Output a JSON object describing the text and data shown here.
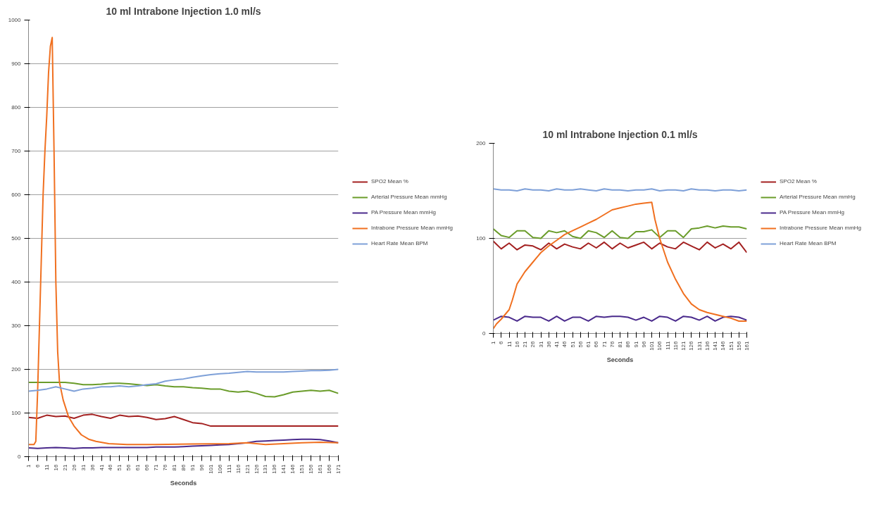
{
  "chart_data": [
    {
      "type": "line",
      "title": "10 ml Intrabone Injection 1.0 ml/s",
      "xlabel": "Seconds",
      "xlim": [
        1,
        171
      ],
      "xticks": [
        1,
        6,
        11,
        16,
        21,
        26,
        31,
        36,
        41,
        46,
        51,
        56,
        61,
        66,
        71,
        76,
        81,
        86,
        91,
        96,
        101,
        106,
        111,
        116,
        121,
        126,
        131,
        136,
        141,
        146,
        151,
        156,
        161,
        166,
        171
      ],
      "ylim": [
        0,
        1000
      ],
      "yticks": [
        0,
        100,
        200,
        300,
        400,
        500,
        600,
        700,
        800,
        900,
        1000
      ],
      "grid": "y",
      "legend": "right",
      "x": [
        1,
        6,
        11,
        16,
        21,
        26,
        31,
        36,
        41,
        46,
        51,
        56,
        61,
        66,
        71,
        76,
        81,
        86,
        91,
        96,
        101,
        106,
        111,
        116,
        121,
        126,
        131,
        136,
        141,
        146,
        151,
        156,
        161,
        166,
        171
      ],
      "series": [
        {
          "name": "SPO2 Mean %",
          "color": "#a32020",
          "values": [
            90,
            88,
            95,
            92,
            93,
            88,
            95,
            97,
            92,
            88,
            95,
            92,
            93,
            90,
            85,
            87,
            92,
            85,
            78,
            76,
            70,
            70,
            70,
            70,
            70,
            70,
            70,
            70,
            70,
            70,
            70,
            70,
            70,
            70,
            70
          ]
        },
        {
          "name": "Arterial Pressure Mean mmHg",
          "color": "#6a9c2a",
          "values": [
            170,
            170,
            170,
            170,
            170,
            168,
            165,
            165,
            166,
            168,
            168,
            167,
            165,
            163,
            165,
            162,
            160,
            160,
            158,
            157,
            155,
            155,
            150,
            148,
            150,
            145,
            138,
            137,
            142,
            148,
            150,
            152,
            150,
            152,
            145
          ]
        },
        {
          "name": "PA Pressure Mean mmHg",
          "color": "#4a2a8c",
          "values": [
            20,
            19,
            20,
            21,
            20,
            19,
            20,
            20,
            21,
            21,
            21,
            21,
            21,
            21,
            22,
            22,
            22,
            23,
            24,
            25,
            26,
            27,
            28,
            30,
            32,
            35,
            36,
            37,
            38,
            39,
            40,
            40,
            39,
            36,
            32
          ]
        },
        {
          "name": "Intrabone Pressure Mean mmHg",
          "color": "#f07020",
          "x": [
            1,
            4,
            5,
            6,
            7,
            8,
            9,
            10,
            11,
            12,
            13,
            14,
            15,
            16,
            17,
            18,
            20,
            23,
            26,
            30,
            34,
            38,
            45,
            55,
            70,
            90,
            111,
            121,
            126,
            131,
            141,
            151,
            161,
            171
          ],
          "values": [
            28,
            28,
            35,
            150,
            300,
            450,
            600,
            700,
            780,
            880,
            940,
            960,
            700,
            400,
            240,
            170,
            130,
            91,
            70,
            50,
            40,
            35,
            30,
            28,
            28,
            29,
            30,
            32,
            30,
            28,
            30,
            32,
            33,
            32
          ]
        },
        {
          "name": "Heart Rate Mean BPM",
          "color": "#7ea0d8",
          "values": [
            150,
            152,
            155,
            160,
            155,
            150,
            155,
            157,
            160,
            160,
            162,
            160,
            162,
            165,
            167,
            173,
            176,
            178,
            182,
            185,
            188,
            190,
            191,
            193,
            195,
            194,
            194,
            194,
            194,
            195,
            196,
            197,
            197,
            198,
            200
          ]
        }
      ]
    },
    {
      "type": "line",
      "title": "10 ml Intrabone Injection 0.1 ml/s",
      "xlabel": "Seconds",
      "xlim": [
        1,
        161
      ],
      "xticks": [
        1,
        6,
        11,
        16,
        21,
        26,
        31,
        36,
        41,
        46,
        51,
        56,
        61,
        66,
        71,
        76,
        81,
        86,
        91,
        96,
        101,
        106,
        111,
        116,
        121,
        126,
        131,
        136,
        141,
        146,
        151,
        156,
        161
      ],
      "ylim": [
        0,
        200
      ],
      "yticks": [
        0,
        100,
        200
      ],
      "grid": "y",
      "legend": "right",
      "x": [
        1,
        6,
        11,
        16,
        21,
        26,
        31,
        36,
        41,
        46,
        51,
        56,
        61,
        66,
        71,
        76,
        81,
        86,
        91,
        96,
        101,
        106,
        111,
        116,
        121,
        126,
        131,
        136,
        141,
        146,
        151,
        156,
        161
      ],
      "series": [
        {
          "name": "SPO2 Mean %",
          "color": "#a32020",
          "values": [
            97,
            89,
            95,
            88,
            93,
            92,
            88,
            95,
            89,
            94,
            91,
            89,
            95,
            90,
            96,
            89,
            95,
            90,
            93,
            96,
            89,
            95,
            91,
            89,
            96,
            92,
            88,
            96,
            90,
            94,
            89,
            96,
            85
          ]
        },
        {
          "name": "Arterial Pressure Mean mmHg",
          "color": "#6a9c2a",
          "values": [
            110,
            103,
            101,
            108,
            108,
            101,
            100,
            108,
            106,
            108,
            102,
            100,
            108,
            106,
            101,
            108,
            101,
            100,
            107,
            107,
            109,
            101,
            108,
            108,
            101,
            110,
            111,
            113,
            111,
            113,
            112,
            112,
            110
          ]
        },
        {
          "name": "PA Pressure Mean mmHg",
          "color": "#4a2a8c",
          "values": [
            14,
            18,
            17,
            13,
            18,
            17,
            17,
            13,
            18,
            13,
            17,
            17,
            13,
            18,
            17,
            18,
            18,
            17,
            14,
            17,
            13,
            18,
            17,
            13,
            18,
            17,
            14,
            18,
            13,
            17,
            18,
            17,
            14
          ]
        },
        {
          "name": "Intrabone Pressure Mean mmHg",
          "color": "#f07020",
          "x": [
            1,
            3,
            6,
            11,
            13,
            16,
            21,
            26,
            31,
            36,
            41,
            46,
            51,
            56,
            61,
            66,
            71,
            76,
            81,
            86,
            91,
            96,
            101,
            103,
            106,
            111,
            116,
            121,
            126,
            131,
            136,
            141,
            146,
            151,
            156,
            161
          ],
          "values": [
            5,
            10,
            15,
            25,
            35,
            52,
            65,
            75,
            85,
            92,
            98,
            104,
            108,
            112,
            116,
            120,
            125,
            130,
            132,
            134,
            136,
            137,
            138,
            120,
            100,
            75,
            57,
            42,
            31,
            25,
            22,
            20,
            18,
            16,
            13,
            13
          ]
        },
        {
          "name": "Heart Rate Mean BPM",
          "color": "#7ea0d8",
          "values": [
            152,
            151,
            151,
            150,
            152,
            151,
            151,
            150,
            152,
            151,
            151,
            152,
            151,
            150,
            152,
            151,
            151,
            150,
            151,
            151,
            152,
            150,
            151,
            151,
            150,
            152,
            151,
            151,
            150,
            151,
            151,
            150,
            151
          ]
        }
      ]
    }
  ]
}
